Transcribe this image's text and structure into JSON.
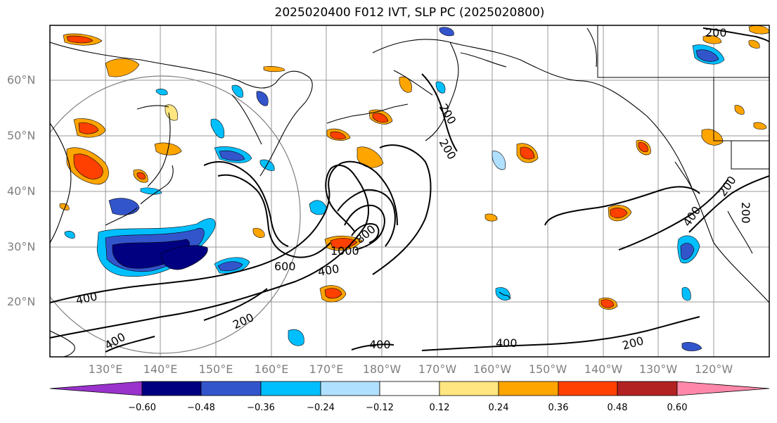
{
  "title": "2025020400 F012 IVT, SLP PC (2025020800)",
  "lat_labels": [
    "60°N",
    "50°N",
    "40°N",
    "30°N",
    "20°N"
  ],
  "lon_labels": [
    "130°E",
    "140°E",
    "150°E",
    "160°E",
    "170°E",
    "180°W",
    "170°W",
    "160°W",
    "150°W",
    "140°W",
    "130°W",
    "120°W"
  ],
  "contour_labels": {
    "c200_a": "200",
    "c200_b": "200",
    "c200_c": "200",
    "c200_d": "200",
    "c200_e": "200",
    "c200_f": "200",
    "c200_g": "200",
    "c400_a": "400",
    "c400_b": "400",
    "c400_c": "400",
    "c400_d": "400",
    "c400_e": "400",
    "c400_f": "400",
    "c600": "600",
    "c800": "800",
    "c1000": "1000"
  },
  "colorbar": {
    "ticks": [
      "−0.60",
      "−0.48",
      "−0.36",
      "−0.24",
      "−0.12",
      "0.12",
      "0.24",
      "0.36",
      "0.48",
      "0.60"
    ],
    "colors": [
      "#9933cc",
      "#000080",
      "#3355cc",
      "#00bfff",
      "#b0e0ff",
      "#ffffff",
      "#ffe680",
      "#ffa500",
      "#ff4000",
      "#b22222",
      "#ff88aa"
    ]
  },
  "colors": {
    "grid": "#999999",
    "coast": "#000000",
    "neg_fill": [
      "#b0e0ff",
      "#00bfff",
      "#3355cc",
      "#000080"
    ],
    "pos_fill": [
      "#ffe680",
      "#ffa500",
      "#ff4000"
    ]
  }
}
